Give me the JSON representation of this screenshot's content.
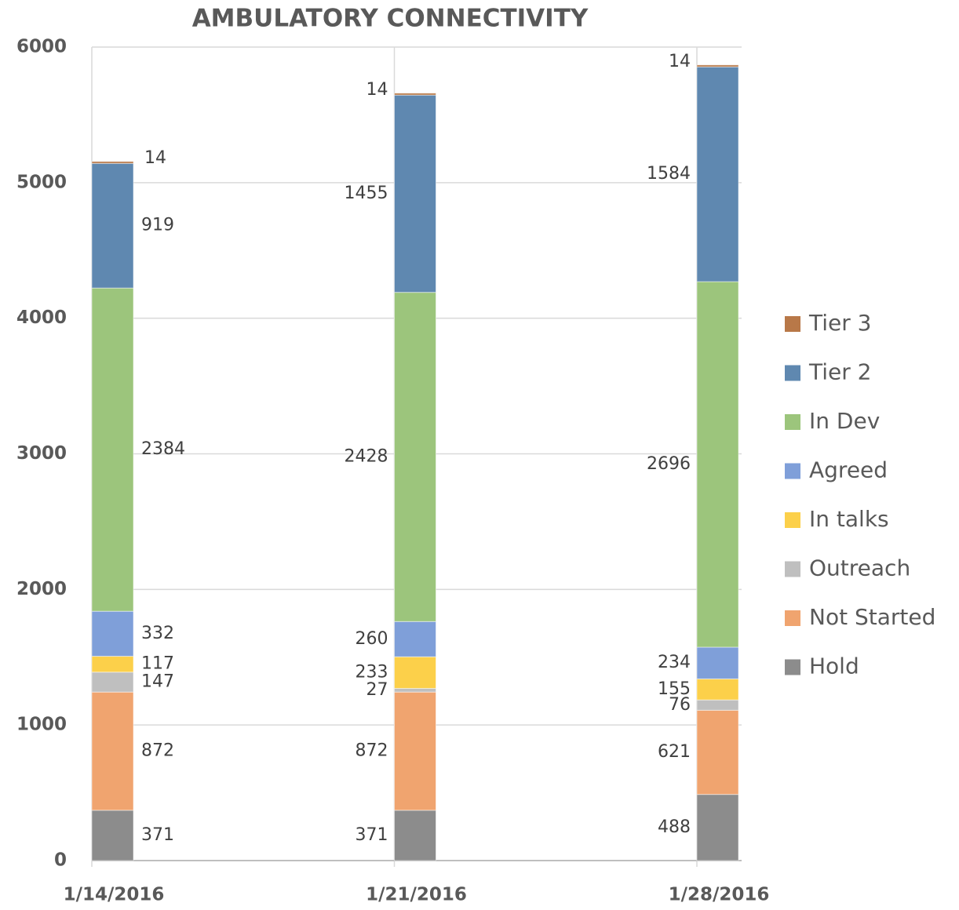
{
  "chart_data": {
    "type": "stacked_bar",
    "title": "AMBULATORY CONNECTIVITY",
    "categories": [
      "1/14/2016",
      "1/21/2016",
      "1/28/2016"
    ],
    "series": [
      {
        "name": "Hold",
        "color": "#8c8c8c",
        "values": [
          371,
          371,
          488
        ]
      },
      {
        "name": "Not Started",
        "color": "#f0a46f",
        "values": [
          872,
          872,
          621
        ]
      },
      {
        "name": "Outreach",
        "color": "#bfbfbf",
        "values": [
          147,
          27,
          76
        ]
      },
      {
        "name": "In talks",
        "color": "#fcd04a",
        "values": [
          117,
          233,
          155
        ]
      },
      {
        "name": "Agreed",
        "color": "#7f9fd9",
        "values": [
          332,
          260,
          234
        ]
      },
      {
        "name": "In Dev",
        "color": "#9cc57c",
        "values": [
          2384,
          2428,
          2696
        ]
      },
      {
        "name": "Tier 2",
        "color": "#5f88b0",
        "values": [
          919,
          1455,
          1584
        ]
      },
      {
        "name": "Tier 3",
        "color": "#b87848",
        "values": [
          14,
          14,
          14
        ]
      }
    ],
    "ylim": [
      0,
      6000
    ],
    "yticks": [
      0,
      1000,
      2000,
      3000,
      4000,
      5000,
      6000
    ],
    "grid": true,
    "legend": "right"
  }
}
